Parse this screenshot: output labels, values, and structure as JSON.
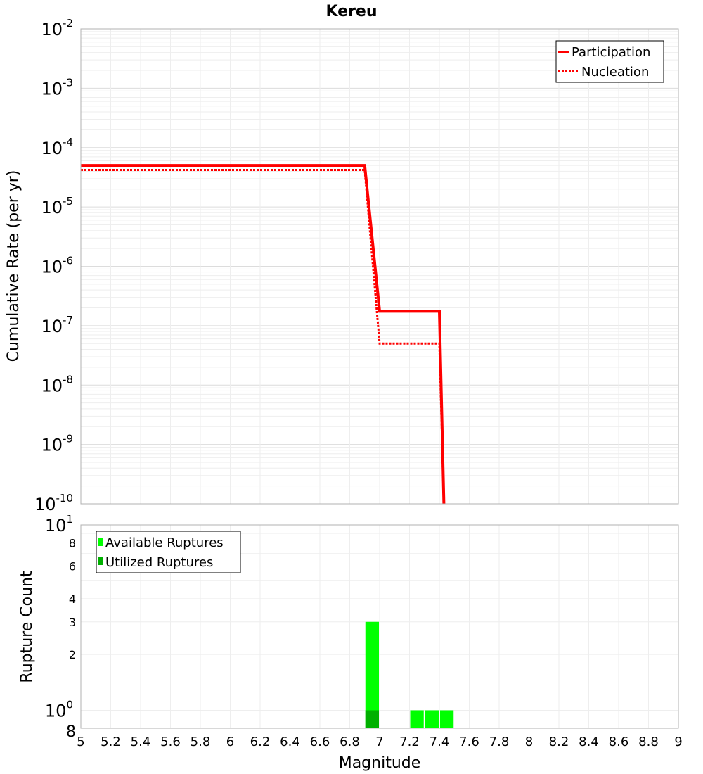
{
  "chart_data": [
    {
      "type": "line",
      "title": "Kereu",
      "ylabel": "Cumulative Rate (per yr)",
      "xlim": [
        5,
        9
      ],
      "ylim": [
        1e-10,
        0.01
      ],
      "yscale": "log",
      "grid": true,
      "legend_position": "top-right",
      "y_ticks": [
        {
          "base": "10",
          "exp": "-10"
        },
        {
          "base": "10",
          "exp": "-9"
        },
        {
          "base": "10",
          "exp": "-8"
        },
        {
          "base": "10",
          "exp": "-7"
        },
        {
          "base": "10",
          "exp": "-6"
        },
        {
          "base": "10",
          "exp": "-5"
        },
        {
          "base": "10",
          "exp": "-4"
        },
        {
          "base": "10",
          "exp": "-3"
        },
        {
          "base": "10",
          "exp": "-2"
        }
      ],
      "series": [
        {
          "name": "Participation",
          "style": "solid",
          "color": "#ff0000",
          "x": [
            5.0,
            6.9,
            7.0,
            7.4,
            7.43
          ],
          "y": [
            5e-05,
            5e-05,
            1.75e-07,
            1.75e-07,
            1e-10
          ]
        },
        {
          "name": "Nucleation",
          "style": "dotted",
          "color": "#ff0000",
          "x": [
            5.0,
            6.9,
            7.0,
            7.4,
            7.43
          ],
          "y": [
            4.2e-05,
            4.2e-05,
            5e-08,
            5e-08,
            1e-10
          ]
        }
      ]
    },
    {
      "type": "bar",
      "xlabel": "Magnitude",
      "ylabel": "Rupture Count",
      "xlim": [
        5,
        9
      ],
      "ylim": [
        0.8,
        10
      ],
      "yscale": "log",
      "grid": true,
      "legend_position": "top-left",
      "bin_width": 0.1,
      "x_ticks": [
        "5",
        "5.2",
        "5.4",
        "5.6",
        "5.8",
        "6",
        "6.2",
        "6.4",
        "6.6",
        "6.8",
        "7",
        "7.2",
        "7.4",
        "7.6",
        "7.8",
        "8",
        "8.2",
        "8.4",
        "8.6",
        "8.8",
        "9"
      ],
      "y_ticks": {
        "top_base": "10",
        "top_exp": "1",
        "bottom_base": "10",
        "bottom_exp": "0",
        "minor": [
          "8",
          "6",
          "4",
          "3",
          "2",
          "8"
        ]
      },
      "series": [
        {
          "name": "Available Ruptures",
          "color": "#00ff00",
          "x": [
            6.95,
            7.25,
            7.35,
            7.45
          ],
          "values": [
            3,
            1,
            1,
            1
          ]
        },
        {
          "name": "Utilized Ruptures",
          "color": "#00b000",
          "x": [
            6.95
          ],
          "values": [
            1
          ]
        }
      ]
    }
  ]
}
